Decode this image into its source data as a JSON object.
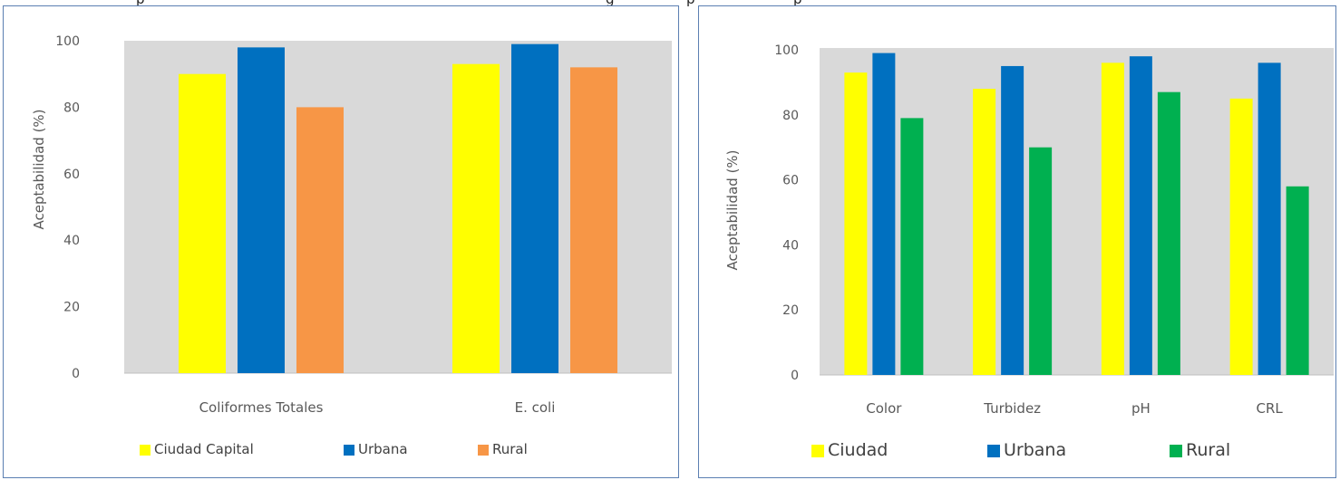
{
  "header_fragments": [
    "p",
    "g",
    "p",
    "p"
  ],
  "chart_data": [
    {
      "type": "bar",
      "ylabel": "Aceptabilidad (%)",
      "ylim": [
        0,
        100
      ],
      "yticks": [
        "0",
        "20",
        "40",
        "60",
        "80",
        "100"
      ],
      "categories": [
        "Coliformes Totales",
        "E. coli"
      ],
      "series": [
        {
          "name": "Ciudad Capital",
          "color": "#ffff00",
          "values": [
            90,
            93
          ]
        },
        {
          "name": "Urbana",
          "color": "#0070c0",
          "values": [
            98,
            99
          ]
        },
        {
          "name": "Rural",
          "color": "#f79646",
          "values": [
            80,
            92
          ]
        }
      ],
      "plot_background": "#d9d9d9",
      "grid": false,
      "legend_position": "bottom"
    },
    {
      "type": "bar",
      "ylabel": "Aceptabilidad (%)",
      "ylim": [
        0,
        100
      ],
      "yticks": [
        "0",
        "20",
        "40",
        "60",
        "80",
        "100"
      ],
      "categories": [
        "Color",
        "Turbidez",
        "pH",
        "CRL"
      ],
      "series": [
        {
          "name": "Ciudad",
          "color": "#ffff00",
          "values": [
            93,
            88,
            96,
            85
          ]
        },
        {
          "name": "Urbana",
          "color": "#0070c0",
          "values": [
            99,
            95,
            98,
            96
          ]
        },
        {
          "name": "Rural",
          "color": "#00b050",
          "values": [
            79,
            70,
            87,
            58
          ]
        }
      ],
      "plot_background": "#d9d9d9",
      "grid": false,
      "legend_position": "bottom"
    }
  ]
}
